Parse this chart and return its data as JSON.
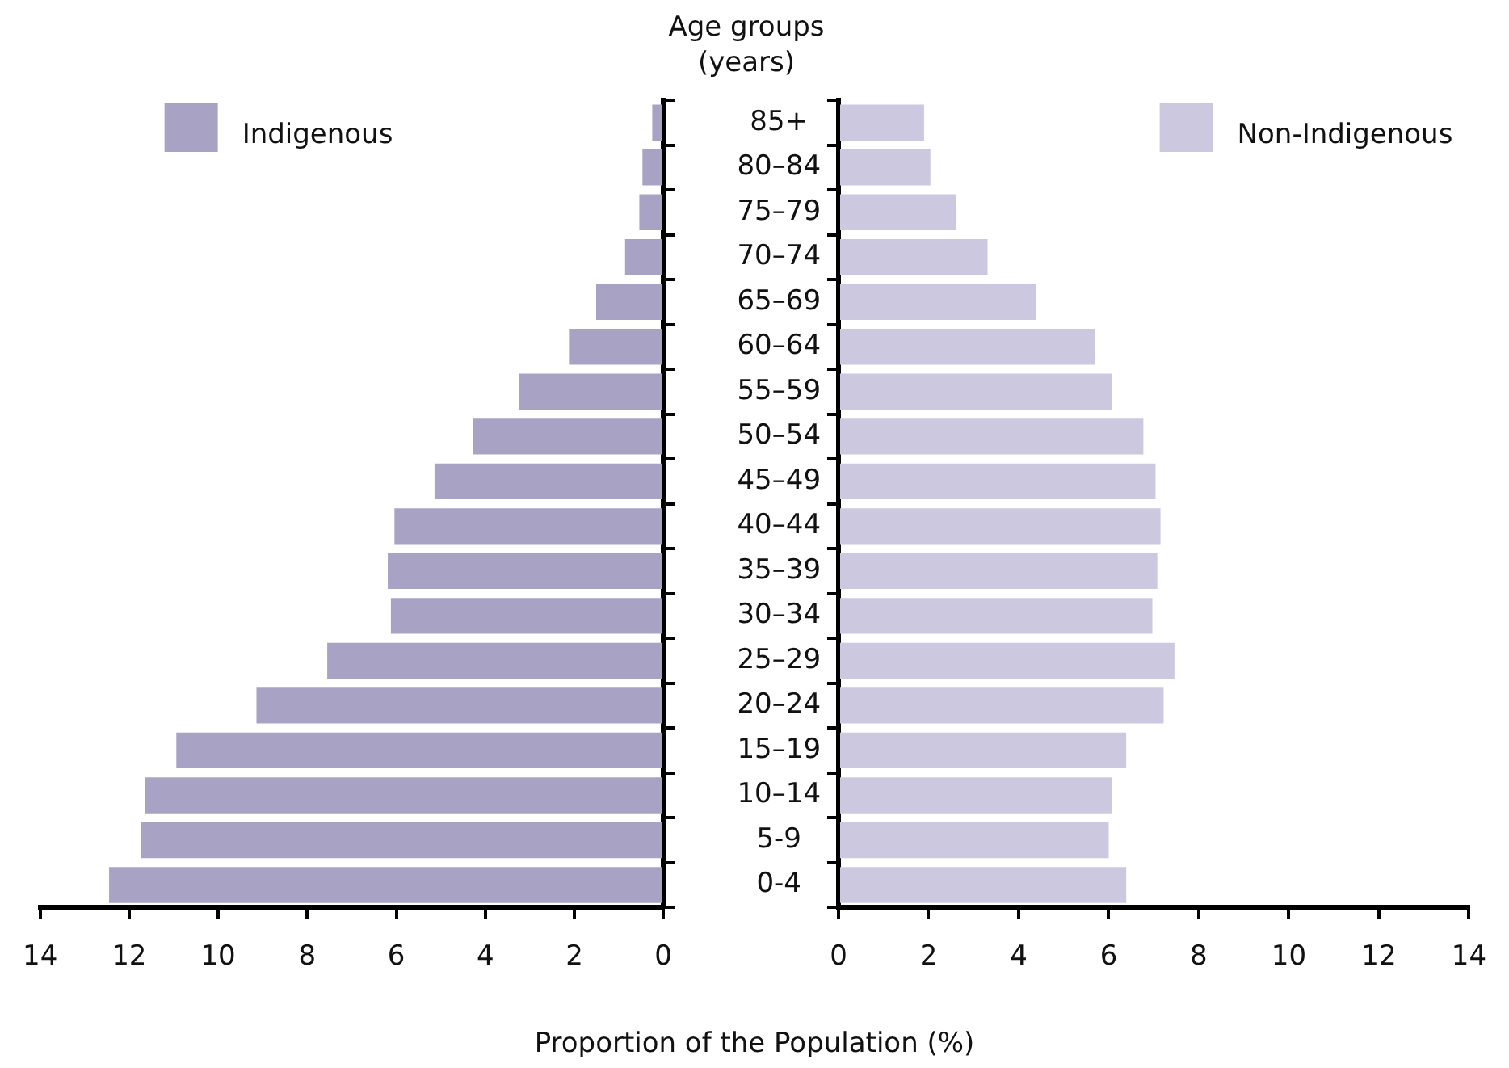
{
  "chart_data": [
    {
      "type": "bar",
      "orientation": "horizontal",
      "categories": [
        null,
        null,
        null,
        null,
        null,
        null,
        null,
        null,
        null,
        null,
        null,
        null,
        null,
        null,
        null,
        null,
        null,
        null
      ],
      "series": [
        {
          "name": "Indigenous",
          "color": "#a8a3c5",
          "values": [
            0.25,
            0.47,
            0.54,
            0.86,
            1.51,
            2.12,
            3.24,
            4.28,
            5.14,
            6.04,
            6.19,
            6.12,
            7.55,
            9.14,
            10.94,
            11.65,
            11.73,
            12.45
          ]
        }
      ],
      "xlim": [
        14,
        0
      ],
      "xticks": [
        14,
        12,
        10,
        8,
        6,
        4,
        2,
        0
      ],
      "tick_labels": "x",
      "legend": "top left"
    },
    {
      "type": "bar",
      "orientation": "horizontal",
      "title": "Age groups (years)",
      "xlabel": "Proportion of the Population (%)",
      "categories": [
        "85+",
        "80–84",
        "75–79",
        "70–74",
        "65–69",
        "60–64",
        "55–59",
        "50–54",
        "45–49",
        "40–44",
        "35–39",
        "30–34",
        "25–29",
        "20–24",
        "15–19",
        "10–14",
        "5-9",
        "0-4"
      ],
      "series": [
        {
          "name": "Non-Indigenous",
          "color": "#cbc8df",
          "values": [
            1.9,
            2.04,
            2.62,
            3.31,
            4.38,
            5.7,
            6.08,
            6.77,
            7.04,
            7.15,
            7.08,
            6.97,
            7.46,
            7.22,
            6.39,
            6.08,
            6.0,
            6.39
          ]
        }
      ],
      "xlim": [
        0,
        14
      ],
      "xticks": [
        0,
        2,
        4,
        6,
        8,
        10,
        12,
        14
      ],
      "legend": "top right"
    }
  ]
}
